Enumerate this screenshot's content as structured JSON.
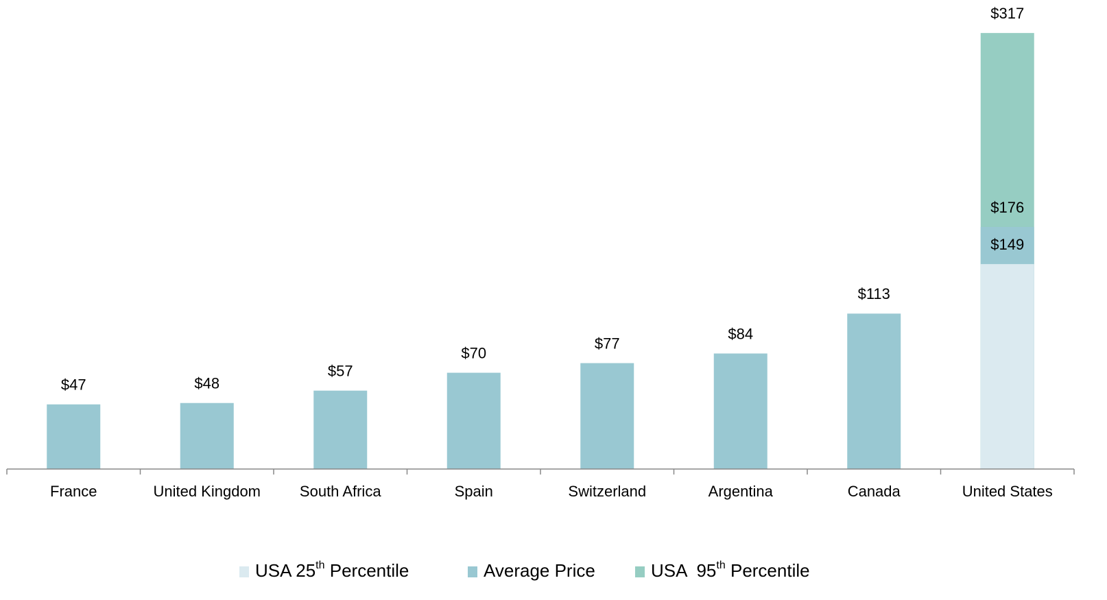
{
  "chart_data": {
    "type": "bar",
    "categories": [
      "France",
      "United Kingdom",
      "South Africa",
      "Spain",
      "Switzerland",
      "Argentina",
      "Canada",
      "United States"
    ],
    "series": [
      {
        "name": "USA 25th Percentile",
        "color": "#dbeaf0",
        "values": [
          null,
          null,
          null,
          null,
          null,
          null,
          null,
          149
        ],
        "value_labels": [
          null,
          null,
          null,
          null,
          null,
          null,
          null,
          "$149"
        ]
      },
      {
        "name": "Average Price",
        "color": "#99c8d2",
        "values": [
          47,
          48,
          57,
          70,
          77,
          84,
          113,
          176
        ],
        "value_labels": [
          "$47",
          "$48",
          "$57",
          "$70",
          "$77",
          "$84",
          "$113",
          "$176"
        ]
      },
      {
        "name": "USA  95th Percentile",
        "color": "#96cdc2",
        "values": [
          null,
          null,
          null,
          null,
          null,
          null,
          null,
          317
        ],
        "value_labels": [
          null,
          null,
          null,
          null,
          null,
          null,
          null,
          "$317"
        ]
      }
    ],
    "ylim": [
      0,
      340
    ]
  }
}
